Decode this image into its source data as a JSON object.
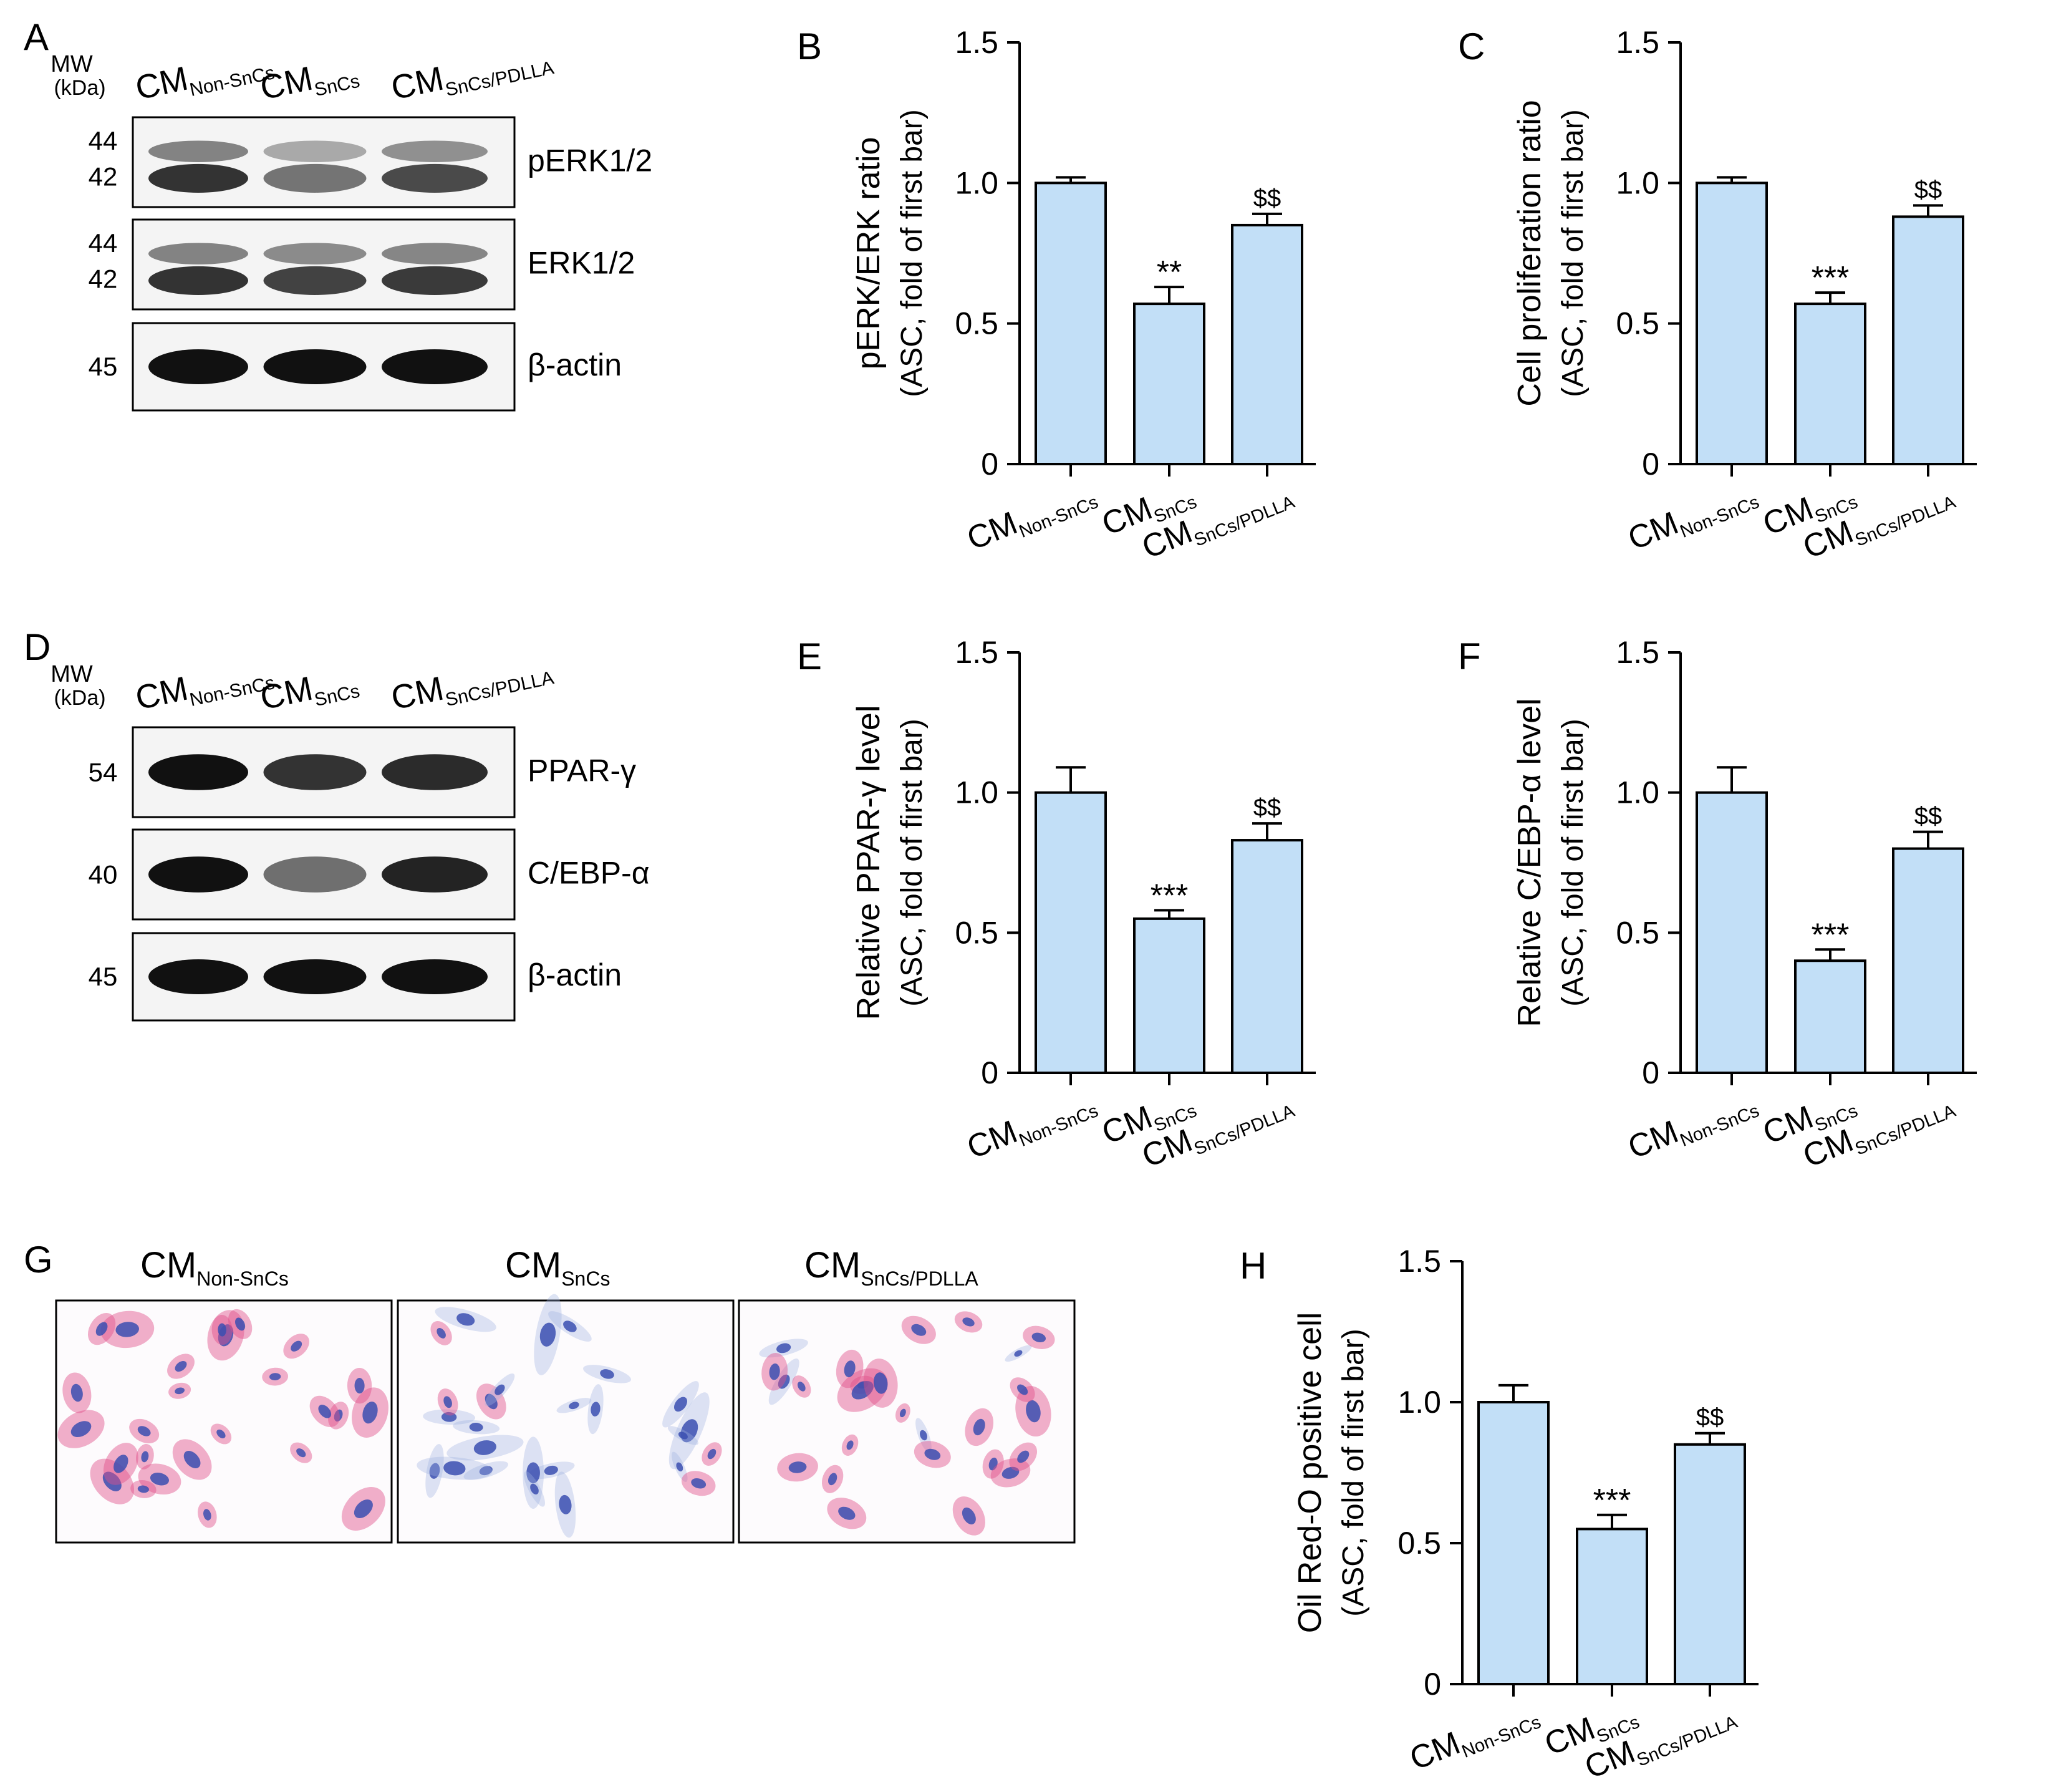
{
  "groups": {
    "cm": "CM",
    "non_sncs": "Non-SnCs",
    "sncs": "SnCs",
    "sncs_pdlla": "SnCs/PDLLA"
  },
  "colors": {
    "bar_fill": "#c2dff7",
    "bar_stroke": "#000000",
    "blot_bg": "#f4f4f4",
    "band": "#111111",
    "stain_blue": "#3b4fb0",
    "stain_red": "#e0508a"
  },
  "panels": {
    "A": {
      "letter": "A",
      "mw_label": "MW",
      "kda_label": "(kDa)",
      "blots": [
        {
          "markers": [
            "44",
            "42"
          ],
          "label": "pERK1/2",
          "band_intensity": [
            1.0,
            0.55,
            0.85
          ]
        },
        {
          "markers": [
            "44",
            "42"
          ],
          "label": "ERK1/2",
          "band_intensity": [
            1.0,
            0.9,
            0.95
          ]
        },
        {
          "markers": [
            "45"
          ],
          "label": "β-actin",
          "band_intensity": [
            1.0,
            1.0,
            1.0
          ]
        }
      ]
    },
    "D": {
      "letter": "D",
      "mw_label": "MW",
      "kda_label": "(kDa)",
      "blots": [
        {
          "markers": [
            "54"
          ],
          "label": "PPAR-γ",
          "band_intensity": [
            1.0,
            0.8,
            0.85
          ]
        },
        {
          "markers": [
            "40"
          ],
          "label": "C/EBP-α",
          "band_intensity": [
            1.0,
            0.45,
            0.9
          ]
        },
        {
          "markers": [
            "45"
          ],
          "label": "β-actin",
          "band_intensity": [
            1.0,
            1.0,
            1.0
          ]
        }
      ]
    },
    "G": {
      "letter": "G",
      "titles": [
        "Non-SnCs",
        "SnCs",
        "SnCs/PDLLA"
      ]
    }
  },
  "chart_data": [
    {
      "panel": "B",
      "type": "bar",
      "ylabel_line1": "pERK/ERK ratio",
      "ylabel_line2": "(ASC, fold of first bar)",
      "ylim": [
        0,
        1.5
      ],
      "yticks": [
        "0",
        "0.5",
        "1.0",
        "1.5"
      ],
      "values": [
        1.0,
        0.57,
        0.85
      ],
      "errors": [
        0.02,
        0.06,
        0.04
      ],
      "annotations": [
        "",
        "**",
        "$$"
      ]
    },
    {
      "panel": "C",
      "type": "bar",
      "ylabel_line1": "Cell proliferation ratio",
      "ylabel_line2": "(ASC, fold of first bar)",
      "ylim": [
        0,
        1.5
      ],
      "yticks": [
        "0",
        "0.5",
        "1.0",
        "1.5"
      ],
      "values": [
        1.0,
        0.57,
        0.88
      ],
      "errors": [
        0.02,
        0.04,
        0.04
      ],
      "annotations": [
        "",
        "***",
        "$$"
      ]
    },
    {
      "panel": "E",
      "type": "bar",
      "ylabel_line1": "Relative PPAR-γ level",
      "ylabel_line2": "(ASC, fold of first bar)",
      "ylim": [
        0,
        1.5
      ],
      "yticks": [
        "0",
        "0.5",
        "1.0",
        "1.5"
      ],
      "values": [
        1.0,
        0.55,
        0.83
      ],
      "errors": [
        0.09,
        0.03,
        0.06
      ],
      "annotations": [
        "",
        "***",
        "$$"
      ]
    },
    {
      "panel": "F",
      "type": "bar",
      "ylabel_line1": "Relative C/EBP-α level",
      "ylabel_line2": "(ASC, fold of first bar)",
      "ylim": [
        0,
        1.5
      ],
      "yticks": [
        "0",
        "0.5",
        "1.0",
        "1.5"
      ],
      "values": [
        1.0,
        0.4,
        0.8
      ],
      "errors": [
        0.09,
        0.04,
        0.06
      ],
      "annotations": [
        "",
        "***",
        "$$"
      ]
    },
    {
      "panel": "H",
      "type": "bar",
      "ylabel_line1": "Oil Red-O positive cell",
      "ylabel_line2": "(ASC, fold of first bar)",
      "ylim": [
        0,
        1.5
      ],
      "yticks": [
        "0",
        "0.5",
        "1.0",
        "1.5"
      ],
      "values": [
        1.0,
        0.55,
        0.85
      ],
      "errors": [
        0.06,
        0.05,
        0.04
      ],
      "annotations": [
        "",
        "***",
        "$$"
      ]
    }
  ]
}
